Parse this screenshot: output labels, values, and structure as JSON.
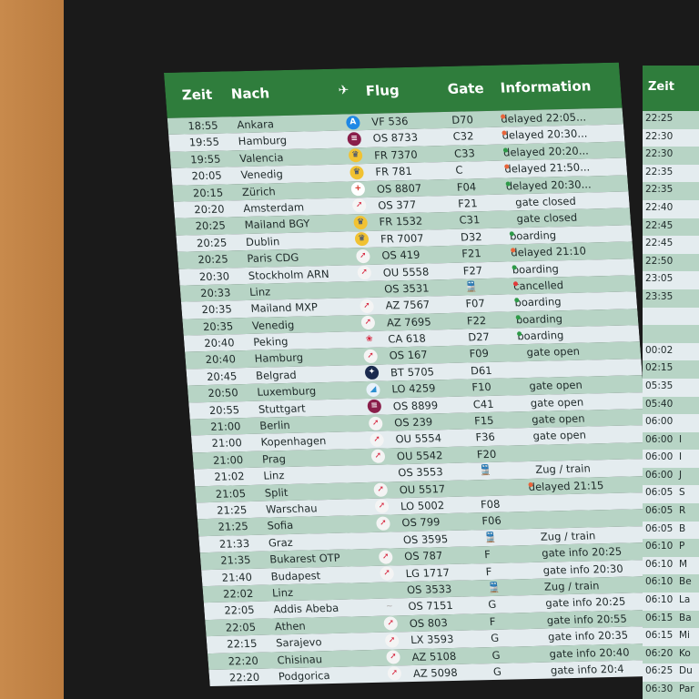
{
  "colors": {
    "header": "#2f7d3c",
    "delayed": "#e8643a",
    "ok": "#2e9a48",
    "cancelled": "#e23a3a"
  },
  "board1": {
    "headers": {
      "time": "Zeit",
      "dest": "Nach",
      "flight": "Flug",
      "gate": "Gate",
      "info": "Information"
    },
    "rows": [
      {
        "time": "18:55",
        "dest": "Ankara",
        "logo": "ajet-icon",
        "flight": "VF 536",
        "gate": "D70",
        "info": "delayed 22:05...",
        "dot": "delayed"
      },
      {
        "time": "19:55",
        "dest": "Hamburg",
        "logo": "eurowings-icon",
        "flight": "OS 8733",
        "gate": "C32",
        "info": "delayed 20:30...",
        "dot": "delayed"
      },
      {
        "time": "19:55",
        "dest": "Valencia",
        "logo": "ryanair-icon",
        "flight": "FR 7370",
        "gate": "C33",
        "info": "delayed 20:20...",
        "dot": "ok"
      },
      {
        "time": "20:05",
        "dest": "Venedig",
        "logo": "ryanair-icon",
        "flight": "FR 781",
        "gate": "C",
        "info": "delayed 21:50...",
        "dot": "delayed"
      },
      {
        "time": "20:15",
        "dest": "Zürich",
        "logo": "swiss-icon",
        "flight": "OS 8807",
        "gate": "F04",
        "info": "delayed 20:30...",
        "dot": "ok"
      },
      {
        "time": "20:20",
        "dest": "Amsterdam",
        "logo": "austrian-icon",
        "flight": "OS 377",
        "gate": "F21",
        "info": "gate closed",
        "dot": ""
      },
      {
        "time": "20:25",
        "dest": "Mailand BGY",
        "logo": "ryanair-icon",
        "flight": "FR 1532",
        "gate": "C31",
        "info": "gate closed",
        "dot": ""
      },
      {
        "time": "20:25",
        "dest": "Dublin",
        "logo": "ryanair-icon",
        "flight": "FR 7007",
        "gate": "D32",
        "info": "boarding",
        "dot": "ok"
      },
      {
        "time": "20:25",
        "dest": "Paris CDG",
        "logo": "austrian-icon",
        "flight": "OS 419",
        "gate": "F21",
        "info": "delayed 21:10",
        "dot": "delayed"
      },
      {
        "time": "20:30",
        "dest": "Stockholm ARN",
        "logo": "austrian-icon",
        "flight": "OU 5558",
        "gate": "F27",
        "info": "boarding",
        "dot": "ok"
      },
      {
        "time": "20:33",
        "dest": "Linz",
        "logo": "",
        "flight": "OS 3531",
        "gate": "train-icon",
        "info": "cancelled",
        "dot": "cancelled"
      },
      {
        "time": "20:35",
        "dest": "Mailand MXP",
        "logo": "austrian-icon",
        "flight": "AZ 7567",
        "gate": "F07",
        "info": "boarding",
        "dot": "ok"
      },
      {
        "time": "20:35",
        "dest": "Venedig",
        "logo": "austrian-icon",
        "flight": "AZ 7695",
        "gate": "F22",
        "info": "boarding",
        "dot": "ok"
      },
      {
        "time": "20:40",
        "dest": "Peking",
        "logo": "air-china-icon",
        "flight": "CA 618",
        "gate": "D27",
        "info": "boarding",
        "dot": "ok"
      },
      {
        "time": "20:40",
        "dest": "Hamburg",
        "logo": "austrian-icon",
        "flight": "OS 167",
        "gate": "F09",
        "info": "gate open",
        "dot": ""
      },
      {
        "time": "20:45",
        "dest": "Belgrad",
        "logo": "air-serbia-icon",
        "flight": "BT 5705",
        "gate": "D61",
        "info": "",
        "dot": ""
      },
      {
        "time": "20:50",
        "dest": "Luxemburg",
        "logo": "luxair-icon",
        "flight": "LO 4259",
        "gate": "F10",
        "info": "gate open",
        "dot": ""
      },
      {
        "time": "20:55",
        "dest": "Stuttgart",
        "logo": "eurowings-icon",
        "flight": "OS 8899",
        "gate": "C41",
        "info": "gate open",
        "dot": ""
      },
      {
        "time": "21:00",
        "dest": "Berlin",
        "logo": "austrian-icon",
        "flight": "OS 239",
        "gate": "F15",
        "info": "gate open",
        "dot": ""
      },
      {
        "time": "21:00",
        "dest": "Kopenhagen",
        "logo": "austrian-icon",
        "flight": "OU 5554",
        "gate": "F36",
        "info": "gate open",
        "dot": ""
      },
      {
        "time": "21:00",
        "dest": "Prag",
        "logo": "austrian-icon",
        "flight": "OU 5542",
        "gate": "F20",
        "info": "",
        "dot": ""
      },
      {
        "time": "21:02",
        "dest": "Linz",
        "logo": "",
        "flight": "OS 3553",
        "gate": "train-icon",
        "info": "Zug / train",
        "dot": ""
      },
      {
        "time": "21:05",
        "dest": "Split",
        "logo": "austrian-icon",
        "flight": "OU 5517",
        "gate": "",
        "info": "delayed 21:15",
        "dot": "delayed"
      },
      {
        "time": "21:25",
        "dest": "Warschau",
        "logo": "austrian-icon",
        "flight": "LO 5002",
        "gate": "F08",
        "info": "",
        "dot": ""
      },
      {
        "time": "21:25",
        "dest": "Sofia",
        "logo": "austrian-icon",
        "flight": "OS 799",
        "gate": "F06",
        "info": "",
        "dot": ""
      },
      {
        "time": "21:33",
        "dest": "Graz",
        "logo": "",
        "flight": "OS 3595",
        "gate": "train-icon",
        "info": "Zug / train",
        "dot": ""
      },
      {
        "time": "21:35",
        "dest": "Bukarest OTP",
        "logo": "austrian-icon",
        "flight": "OS 787",
        "gate": "F",
        "info": "gate info 20:25",
        "dot": ""
      },
      {
        "time": "21:40",
        "dest": "Budapest",
        "logo": "austrian-icon",
        "flight": "LG 1717",
        "gate": "F",
        "info": "gate info 20:30",
        "dot": ""
      },
      {
        "time": "22:02",
        "dest": "Linz",
        "logo": "",
        "flight": "OS 3533",
        "gate": "train-icon",
        "info": "Zug / train",
        "dot": ""
      },
      {
        "time": "22:05",
        "dest": "Addis Abeba",
        "logo": "ethiopian-icon",
        "flight": "OS 7151",
        "gate": "G",
        "info": "gate info 20:25",
        "dot": ""
      },
      {
        "time": "22:05",
        "dest": "Athen",
        "logo": "austrian-icon",
        "flight": "OS 803",
        "gate": "F",
        "info": "gate info 20:55",
        "dot": ""
      },
      {
        "time": "22:15",
        "dest": "Sarajevo",
        "logo": "austrian-icon",
        "flight": "LX 3593",
        "gate": "G",
        "info": "gate info 20:35",
        "dot": ""
      },
      {
        "time": "22:20",
        "dest": "Chisinau",
        "logo": "austrian-icon",
        "flight": "AZ 5108",
        "gate": "G",
        "info": "gate info 20:40",
        "dot": ""
      },
      {
        "time": "22:20",
        "dest": "Podgorica",
        "logo": "austrian-icon",
        "flight": "AZ 5098",
        "gate": "G",
        "info": "gate info 20:4",
        "dot": ""
      }
    ]
  },
  "board2": {
    "headers": {
      "time": "Zeit"
    },
    "rows": [
      {
        "time": "22:25",
        "dest": ""
      },
      {
        "time": "22:30",
        "dest": ""
      },
      {
        "time": "22:30",
        "dest": ""
      },
      {
        "time": "22:35",
        "dest": ""
      },
      {
        "time": "22:35",
        "dest": ""
      },
      {
        "time": "22:40",
        "dest": ""
      },
      {
        "time": "22:45",
        "dest": ""
      },
      {
        "time": "22:45",
        "dest": ""
      },
      {
        "time": "22:50",
        "dest": ""
      },
      {
        "time": "23:05",
        "dest": ""
      },
      {
        "time": "23:35",
        "dest": ""
      },
      {
        "time": "",
        "dest": ""
      },
      {
        "time": "",
        "dest": ""
      },
      {
        "time": "00:02",
        "dest": ""
      },
      {
        "time": "02:15",
        "dest": ""
      },
      {
        "time": "05:35",
        "dest": ""
      },
      {
        "time": "05:40",
        "dest": ""
      },
      {
        "time": "06:00",
        "dest": ""
      },
      {
        "time": "06:00",
        "dest": "I"
      },
      {
        "time": "06:00",
        "dest": "I"
      },
      {
        "time": "06:00",
        "dest": "J"
      },
      {
        "time": "06:05",
        "dest": "S"
      },
      {
        "time": "06:05",
        "dest": "R"
      },
      {
        "time": "06:05",
        "dest": "B"
      },
      {
        "time": "06:10",
        "dest": "P"
      },
      {
        "time": "06:10",
        "dest": "M"
      },
      {
        "time": "06:10",
        "dest": "Be"
      },
      {
        "time": "06:10",
        "dest": "La"
      },
      {
        "time": "06:15",
        "dest": "Ba"
      },
      {
        "time": "06:15",
        "dest": "Mi"
      },
      {
        "time": "06:20",
        "dest": "Ko"
      },
      {
        "time": "06:25",
        "dest": "Du"
      },
      {
        "time": "06:30",
        "dest": "Par"
      }
    ]
  }
}
